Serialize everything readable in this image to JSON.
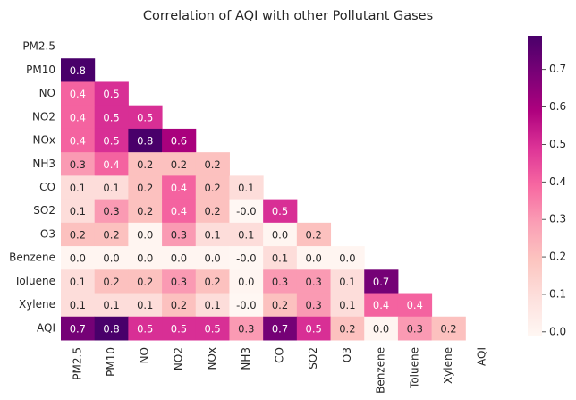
{
  "chart_data": {
    "type": "heatmap",
    "title": "Correlation of AQI with other Pollutant Gases",
    "categories": [
      "PM2.5",
      "PM10",
      "NO",
      "NO2",
      "NOx",
      "NH3",
      "CO",
      "SO2",
      "O3",
      "Benzene",
      "Toluene",
      "Xylene",
      "AQI"
    ],
    "values": [
      [
        null,
        null,
        null,
        null,
        null,
        null,
        null,
        null,
        null,
        null,
        null,
        null,
        null
      ],
      [
        0.8,
        null,
        null,
        null,
        null,
        null,
        null,
        null,
        null,
        null,
        null,
        null,
        null
      ],
      [
        0.4,
        0.5,
        null,
        null,
        null,
        null,
        null,
        null,
        null,
        null,
        null,
        null,
        null
      ],
      [
        0.4,
        0.5,
        0.5,
        null,
        null,
        null,
        null,
        null,
        null,
        null,
        null,
        null,
        null
      ],
      [
        0.4,
        0.5,
        0.8,
        0.6,
        null,
        null,
        null,
        null,
        null,
        null,
        null,
        null,
        null
      ],
      [
        0.3,
        0.4,
        0.2,
        0.2,
        0.2,
        null,
        null,
        null,
        null,
        null,
        null,
        null,
        null
      ],
      [
        0.1,
        0.1,
        0.2,
        0.4,
        0.2,
        0.1,
        null,
        null,
        null,
        null,
        null,
        null,
        null
      ],
      [
        0.1,
        0.3,
        0.2,
        0.4,
        0.2,
        -0.01,
        0.5,
        null,
        null,
        null,
        null,
        null,
        null
      ],
      [
        0.2,
        0.2,
        0.0,
        0.3,
        0.1,
        0.1,
        0.0,
        0.2,
        null,
        null,
        null,
        null,
        null
      ],
      [
        0.0,
        0.0,
        0.0,
        0.0,
        0.0,
        -0.01,
        0.1,
        0.0,
        0.0,
        null,
        null,
        null,
        null
      ],
      [
        0.1,
        0.2,
        0.2,
        0.3,
        0.2,
        0.0,
        0.3,
        0.3,
        0.1,
        0.7,
        null,
        null,
        null
      ],
      [
        0.1,
        0.1,
        0.1,
        0.2,
        0.1,
        -0.01,
        0.2,
        0.3,
        0.1,
        0.4,
        0.4,
        null,
        null
      ],
      [
        0.7,
        0.8,
        0.5,
        0.5,
        0.5,
        0.3,
        0.7,
        0.5,
        0.2,
        0.0,
        0.3,
        0.2,
        null
      ]
    ],
    "value_labels": [
      [
        null,
        null,
        null,
        null,
        null,
        null,
        null,
        null,
        null,
        null,
        null,
        null,
        null
      ],
      [
        "0.8",
        null,
        null,
        null,
        null,
        null,
        null,
        null,
        null,
        null,
        null,
        null,
        null
      ],
      [
        "0.4",
        "0.5",
        null,
        null,
        null,
        null,
        null,
        null,
        null,
        null,
        null,
        null,
        null
      ],
      [
        "0.4",
        "0.5",
        "0.5",
        null,
        null,
        null,
        null,
        null,
        null,
        null,
        null,
        null,
        null
      ],
      [
        "0.4",
        "0.5",
        "0.8",
        "0.6",
        null,
        null,
        null,
        null,
        null,
        null,
        null,
        null,
        null
      ],
      [
        "0.3",
        "0.4",
        "0.2",
        "0.2",
        "0.2",
        null,
        null,
        null,
        null,
        null,
        null,
        null,
        null
      ],
      [
        "0.1",
        "0.1",
        "0.2",
        "0.4",
        "0.2",
        "0.1",
        null,
        null,
        null,
        null,
        null,
        null,
        null
      ],
      [
        "0.1",
        "0.3",
        "0.2",
        "0.4",
        "0.2",
        "-0.0",
        "0.5",
        null,
        null,
        null,
        null,
        null,
        null
      ],
      [
        "0.2",
        "0.2",
        "0.0",
        "0.3",
        "0.1",
        "0.1",
        "0.0",
        "0.2",
        null,
        null,
        null,
        null,
        null
      ],
      [
        "0.0",
        "0.0",
        "0.0",
        "0.0",
        "0.0",
        "-0.0",
        "0.1",
        "0.0",
        "0.0",
        null,
        null,
        null,
        null
      ],
      [
        "0.1",
        "0.2",
        "0.2",
        "0.3",
        "0.2",
        "0.0",
        "0.3",
        "0.3",
        "0.1",
        "0.7",
        null,
        null,
        null
      ],
      [
        "0.1",
        "0.1",
        "0.1",
        "0.2",
        "0.1",
        "-0.0",
        "0.2",
        "0.3",
        "0.1",
        "0.4",
        "0.4",
        null,
        null
      ],
      [
        "0.7",
        "0.8",
        "0.5",
        "0.5",
        "0.5",
        "0.3",
        "0.7",
        "0.5",
        "0.2",
        "0.0",
        "0.3",
        "0.2",
        null
      ]
    ],
    "clim": [
      -0.01,
      0.79
    ],
    "cticks": [
      {
        "value": 0,
        "label": "0.0"
      },
      0.1,
      0.2,
      0.3,
      0.4,
      0.5,
      0.6,
      0.7
    ],
    "colormap": [
      "#fff7f3",
      "#fde0dd",
      "#fcc5c0",
      "#fa9fb5",
      "#f768a1",
      "#dd3497",
      "#ae017e",
      "#7a0177",
      "#49006a"
    ]
  }
}
